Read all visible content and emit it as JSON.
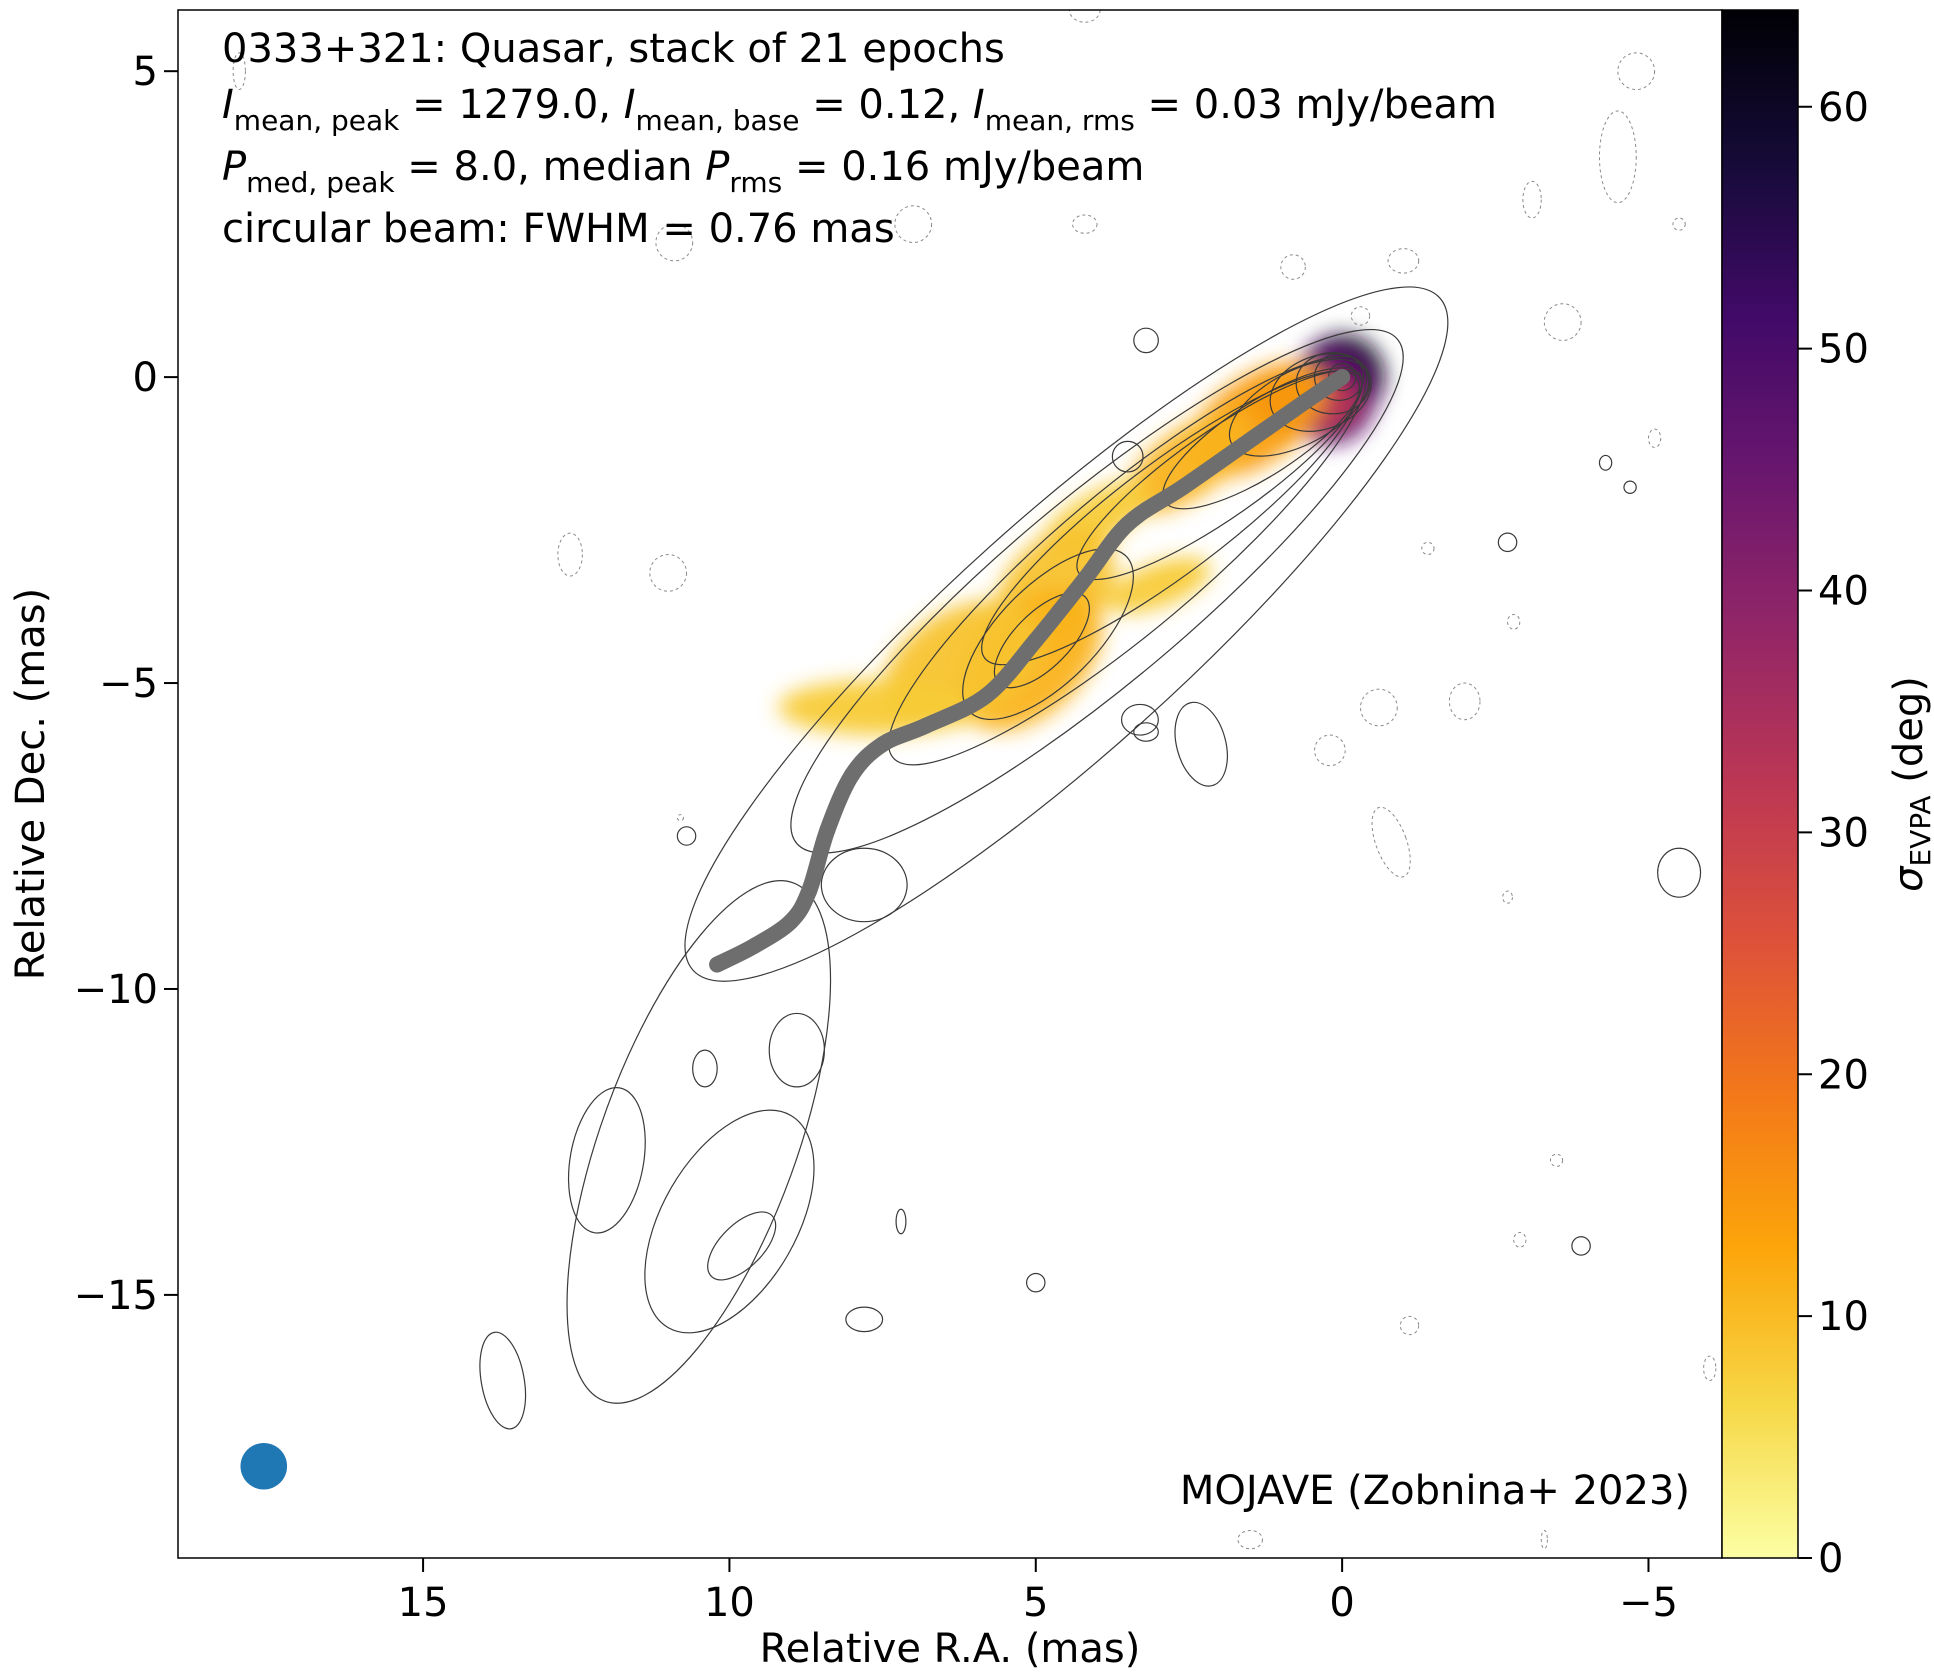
{
  "chart_data": {
    "type": "heatmap",
    "title": "0333+321: Quasar, stack of 21 epochs",
    "info_lines": [
      {
        "parts": [
          {
            "t": "I",
            "italic": true
          },
          {
            "t": "mean, peak",
            "sub": true
          },
          {
            "t": " = 1279.0, "
          },
          {
            "t": "I",
            "italic": true
          },
          {
            "t": "mean, base",
            "sub": true
          },
          {
            "t": " = 0.12, "
          },
          {
            "t": "I",
            "italic": true
          },
          {
            "t": "mean, rms",
            "sub": true
          },
          {
            "t": " = 0.03 mJy/beam"
          }
        ]
      },
      {
        "parts": [
          {
            "t": "P",
            "italic": true
          },
          {
            "t": "med, peak",
            "sub": true
          },
          {
            "t": " = 8.0, median "
          },
          {
            "t": "P",
            "italic": true
          },
          {
            "t": "rms",
            "sub": true
          },
          {
            "t": " = 0.16 mJy/beam"
          }
        ]
      },
      {
        "parts": [
          {
            "t": "circular beam: FWHM = 0.76 mas"
          }
        ]
      }
    ],
    "credit": "MOJAVE (Zobnina+ 2023)",
    "xlabel": "Relative R.A. (mas)",
    "ylabel": "Relative Dec. (mas)",
    "xlim": [
      19.0,
      -6.2
    ],
    "ylim": [
      -19.3,
      6.0
    ],
    "xticks": [
      15,
      10,
      5,
      0,
      -5
    ],
    "yticks": [
      5,
      0,
      -5,
      -10,
      -15
    ],
    "colorbar": {
      "label_symbol": "σ",
      "label_sub": "EVPA",
      "label_unit": " (deg)",
      "range": [
        0,
        64
      ],
      "ticks": [
        0,
        10,
        20,
        30,
        40,
        50,
        60
      ],
      "colormap": "inferno_r",
      "stops": [
        "#fcffa4",
        "#f6d746",
        "#fca50a",
        "#f37819",
        "#dd513a",
        "#bc3754",
        "#932667",
        "#6a176e",
        "#420a68",
        "#160b39",
        "#000004"
      ]
    },
    "ridge_line": {
      "color": "#6e6e6e",
      "points": [
        [
          0.0,
          0.0
        ],
        [
          0.6,
          -0.4
        ],
        [
          1.6,
          -1.1
        ],
        [
          2.6,
          -1.8
        ],
        [
          3.5,
          -2.4
        ],
        [
          4.2,
          -3.3
        ],
        [
          5.0,
          -4.3
        ],
        [
          5.8,
          -5.2
        ],
        [
          6.8,
          -5.7
        ],
        [
          7.5,
          -6.0
        ],
        [
          8.0,
          -6.5
        ],
        [
          8.4,
          -7.4
        ],
        [
          8.7,
          -8.4
        ],
        [
          9.0,
          -8.9
        ],
        [
          9.6,
          -9.3
        ],
        [
          10.2,
          -9.6
        ]
      ]
    },
    "polarization_patches": [
      {
        "x": 0.0,
        "y": 0.0,
        "rx": 0.7,
        "ry": 0.7,
        "rot": 0,
        "value": 60
      },
      {
        "x": 0.2,
        "y": -0.3,
        "rx": 0.75,
        "ry": 0.8,
        "rot": 0,
        "value": 48
      },
      {
        "x": 0.6,
        "y": -0.4,
        "rx": 0.9,
        "ry": 0.55,
        "rot": 0,
        "value": 32
      },
      {
        "x": 1.4,
        "y": -0.7,
        "rx": 1.3,
        "ry": 0.7,
        "rot": -35,
        "value": 14
      },
      {
        "x": 2.5,
        "y": -1.4,
        "rx": 1.2,
        "ry": 0.55,
        "rot": -35,
        "value": 11
      },
      {
        "x": 4.0,
        "y": -2.3,
        "rx": 1.0,
        "ry": 0.4,
        "rot": -30,
        "value": 8
      },
      {
        "x": 4.7,
        "y": -3.5,
        "rx": 1.2,
        "ry": 0.8,
        "rot": -50,
        "value": 9
      },
      {
        "x": 5.1,
        "y": -4.6,
        "rx": 1.4,
        "ry": 0.9,
        "rot": -45,
        "value": 11
      },
      {
        "x": 6.2,
        "y": -4.7,
        "rx": 1.4,
        "ry": 0.9,
        "rot": -30,
        "value": 9
      },
      {
        "x": 7.6,
        "y": -5.4,
        "rx": 1.6,
        "ry": 0.45,
        "rot": 0,
        "value": 8
      },
      {
        "x": 3.0,
        "y": -3.4,
        "rx": 0.9,
        "ry": 0.35,
        "rot": -20,
        "value": 8
      }
    ],
    "solid_contours": [
      {
        "cx": 4.5,
        "cy": -4.2,
        "rx": 8.2,
        "ry": 1.9,
        "rot": -42
      },
      {
        "cx": 4.0,
        "cy": -3.5,
        "rx": 6.4,
        "ry": 1.5,
        "rot": -40
      },
      {
        "cx": 3.5,
        "cy": -3.0,
        "rx": 5.0,
        "ry": 1.15,
        "rot": -40
      },
      {
        "cx": 2.8,
        "cy": -2.3,
        "rx": 3.8,
        "ry": 0.9,
        "rot": -37
      },
      {
        "cx": 2.0,
        "cy": -1.6,
        "rx": 2.8,
        "ry": 0.7,
        "rot": -35
      },
      {
        "cx": 1.3,
        "cy": -1.0,
        "rx": 1.9,
        "ry": 0.6,
        "rot": -33
      },
      {
        "cx": 0.7,
        "cy": -0.5,
        "rx": 1.25,
        "ry": 0.6,
        "rot": -28
      },
      {
        "cx": 0.35,
        "cy": -0.25,
        "rx": 0.85,
        "ry": 0.6,
        "rot": -20
      },
      {
        "cx": 0.15,
        "cy": -0.1,
        "rx": 0.6,
        "ry": 0.5,
        "rot": 0
      },
      {
        "cx": 0.05,
        "cy": 0.0,
        "rx": 0.4,
        "ry": 0.38,
        "rot": 0
      },
      {
        "cx": 0.0,
        "cy": 0.0,
        "rx": 0.22,
        "ry": 0.22,
        "rot": 0
      },
      {
        "cx": 4.8,
        "cy": -4.2,
        "rx": 1.8,
        "ry": 0.8,
        "rot": -45
      },
      {
        "cx": 4.9,
        "cy": -4.3,
        "rx": 1.0,
        "ry": 0.45,
        "rot": -45
      },
      {
        "cx": 10.5,
        "cy": -12.5,
        "rx": 4.5,
        "ry": 1.6,
        "rot": -70
      },
      {
        "cx": 10.0,
        "cy": -13.8,
        "rx": 2.0,
        "ry": 1.1,
        "rot": -60
      },
      {
        "cx": 9.8,
        "cy": -14.2,
        "rx": 0.7,
        "ry": 0.35,
        "rot": -45
      },
      {
        "cx": 12.0,
        "cy": -12.8,
        "rx": 1.2,
        "ry": 0.6,
        "rot": -80
      },
      {
        "cx": 8.9,
        "cy": -11.0,
        "rx": 0.45,
        "ry": 0.6,
        "rot": 0
      },
      {
        "cx": 7.8,
        "cy": -8.3,
        "rx": 0.7,
        "ry": 0.6,
        "rot": 0
      },
      {
        "cx": 10.4,
        "cy": -11.3,
        "rx": 0.2,
        "ry": 0.3,
        "rot": 0
      },
      {
        "cx": 13.7,
        "cy": -16.4,
        "rx": 0.35,
        "ry": 0.8,
        "rot": -10
      },
      {
        "cx": 7.8,
        "cy": -15.4,
        "rx": 0.3,
        "ry": 0.2,
        "rot": 0
      },
      {
        "cx": 5.0,
        "cy": -14.8,
        "rx": 0.15,
        "ry": 0.15,
        "rot": 0
      },
      {
        "cx": 3.3,
        "cy": -5.6,
        "rx": 0.3,
        "ry": 0.25,
        "rot": 0
      },
      {
        "cx": 7.2,
        "cy": -13.8,
        "rx": 0.08,
        "ry": 0.2,
        "rot": 0
      },
      {
        "cx": 3.2,
        "cy": -5.8,
        "rx": 0.2,
        "ry": 0.15,
        "rot": 0
      },
      {
        "cx": 2.3,
        "cy": -6.0,
        "rx": 0.4,
        "ry": 0.7,
        "rot": -15
      },
      {
        "cx": 3.5,
        "cy": -1.3,
        "rx": 0.25,
        "ry": 0.25,
        "rot": 0
      },
      {
        "cx": 10.7,
        "cy": -7.5,
        "rx": 0.15,
        "ry": 0.15,
        "rot": 0
      },
      {
        "cx": 3.2,
        "cy": 0.6,
        "rx": 0.2,
        "ry": 0.2,
        "rot": 0
      },
      {
        "cx": -2.7,
        "cy": -2.7,
        "rx": 0.15,
        "ry": 0.15,
        "rot": 0
      },
      {
        "cx": -3.9,
        "cy": -14.2,
        "rx": 0.15,
        "ry": 0.15,
        "rot": 0
      },
      {
        "cx": -5.5,
        "cy": -8.1,
        "rx": 0.35,
        "ry": 0.4,
        "rot": 0
      },
      {
        "cx": -4.3,
        "cy": -1.4,
        "rx": 0.1,
        "ry": 0.12,
        "rot": 0
      },
      {
        "cx": -4.7,
        "cy": -1.8,
        "rx": 0.1,
        "ry": 0.1,
        "rot": 0
      }
    ],
    "dashed_contours": [
      {
        "cx": -4.5,
        "cy": 3.6,
        "rx": 0.3,
        "ry": 0.75,
        "rot": 0
      },
      {
        "cx": -4.8,
        "cy": 5.0,
        "rx": 0.3,
        "ry": 0.3,
        "rot": 0
      },
      {
        "cx": -1.0,
        "cy": 1.9,
        "rx": 0.25,
        "ry": 0.2,
        "rot": 0
      },
      {
        "cx": -0.3,
        "cy": 1.0,
        "rx": 0.15,
        "ry": 0.15,
        "rot": 0
      },
      {
        "cx": -3.6,
        "cy": 0.9,
        "rx": 0.3,
        "ry": 0.3,
        "rot": 0
      },
      {
        "cx": 0.2,
        "cy": -6.1,
        "rx": 0.25,
        "ry": 0.25,
        "rot": 0
      },
      {
        "cx": -0.6,
        "cy": -5.4,
        "rx": 0.3,
        "ry": 0.3,
        "rot": 0
      },
      {
        "cx": -2.8,
        "cy": -4.0,
        "rx": 0.1,
        "ry": 0.12,
        "rot": 0
      },
      {
        "cx": -1.4,
        "cy": -2.8,
        "rx": 0.1,
        "ry": 0.1,
        "rot": 0
      },
      {
        "cx": -2.0,
        "cy": -5.3,
        "rx": 0.25,
        "ry": 0.3,
        "rot": 0
      },
      {
        "cx": -0.8,
        "cy": -7.6,
        "rx": 0.25,
        "ry": 0.6,
        "rot": -20
      },
      {
        "cx": 11.0,
        "cy": -3.2,
        "rx": 0.3,
        "ry": 0.3,
        "rot": 0
      },
      {
        "cx": 12.6,
        "cy": -2.9,
        "rx": 0.2,
        "ry": 0.35,
        "rot": 0
      },
      {
        "cx": 4.2,
        "cy": 6.0,
        "rx": 0.25,
        "ry": 0.2,
        "rot": 0
      },
      {
        "cx": 0.8,
        "cy": 1.8,
        "rx": 0.2,
        "ry": 0.2,
        "rot": 0
      },
      {
        "cx": 4.2,
        "cy": 2.5,
        "rx": 0.2,
        "ry": 0.15,
        "rot": 0
      },
      {
        "cx": 7.0,
        "cy": 2.5,
        "rx": 0.3,
        "ry": 0.3,
        "rot": 0
      },
      {
        "cx": 10.9,
        "cy": 2.2,
        "rx": 0.3,
        "ry": 0.3,
        "rot": 0
      },
      {
        "cx": -3.1,
        "cy": 2.9,
        "rx": 0.15,
        "ry": 0.3,
        "rot": 0
      },
      {
        "cx": -5.5,
        "cy": 2.5,
        "rx": 0.1,
        "ry": 0.1,
        "rot": 0
      },
      {
        "cx": -6.0,
        "cy": -16.2,
        "rx": 0.1,
        "ry": 0.2,
        "rot": 0
      },
      {
        "cx": -1.1,
        "cy": -15.5,
        "rx": 0.15,
        "ry": 0.15,
        "rot": 0
      },
      {
        "cx": 1.5,
        "cy": -19.0,
        "rx": 0.2,
        "ry": 0.15,
        "rot": 0
      },
      {
        "cx": -3.3,
        "cy": -19.0,
        "rx": 0.05,
        "ry": 0.15,
        "rot": 0
      },
      {
        "cx": 18.0,
        "cy": 5.0,
        "rx": 0.1,
        "ry": 0.3,
        "rot": 0
      },
      {
        "cx": -5.1,
        "cy": -1.0,
        "rx": 0.1,
        "ry": 0.15,
        "rot": 0
      },
      {
        "cx": -3.5,
        "cy": -12.8,
        "rx": 0.1,
        "ry": 0.1,
        "rot": 0
      },
      {
        "cx": -2.9,
        "cy": -14.1,
        "rx": 0.1,
        "ry": 0.12,
        "rot": 0
      },
      {
        "cx": -2.7,
        "cy": -8.5,
        "rx": 0.08,
        "ry": 0.1,
        "rot": 0
      },
      {
        "cx": 10.8,
        "cy": -7.2,
        "rx": 0.05,
        "ry": 0.05,
        "rot": 0
      }
    ],
    "beam": {
      "x": 17.6,
      "y": -17.8,
      "fwhm": 0.76,
      "color": "#1f77b4"
    }
  }
}
